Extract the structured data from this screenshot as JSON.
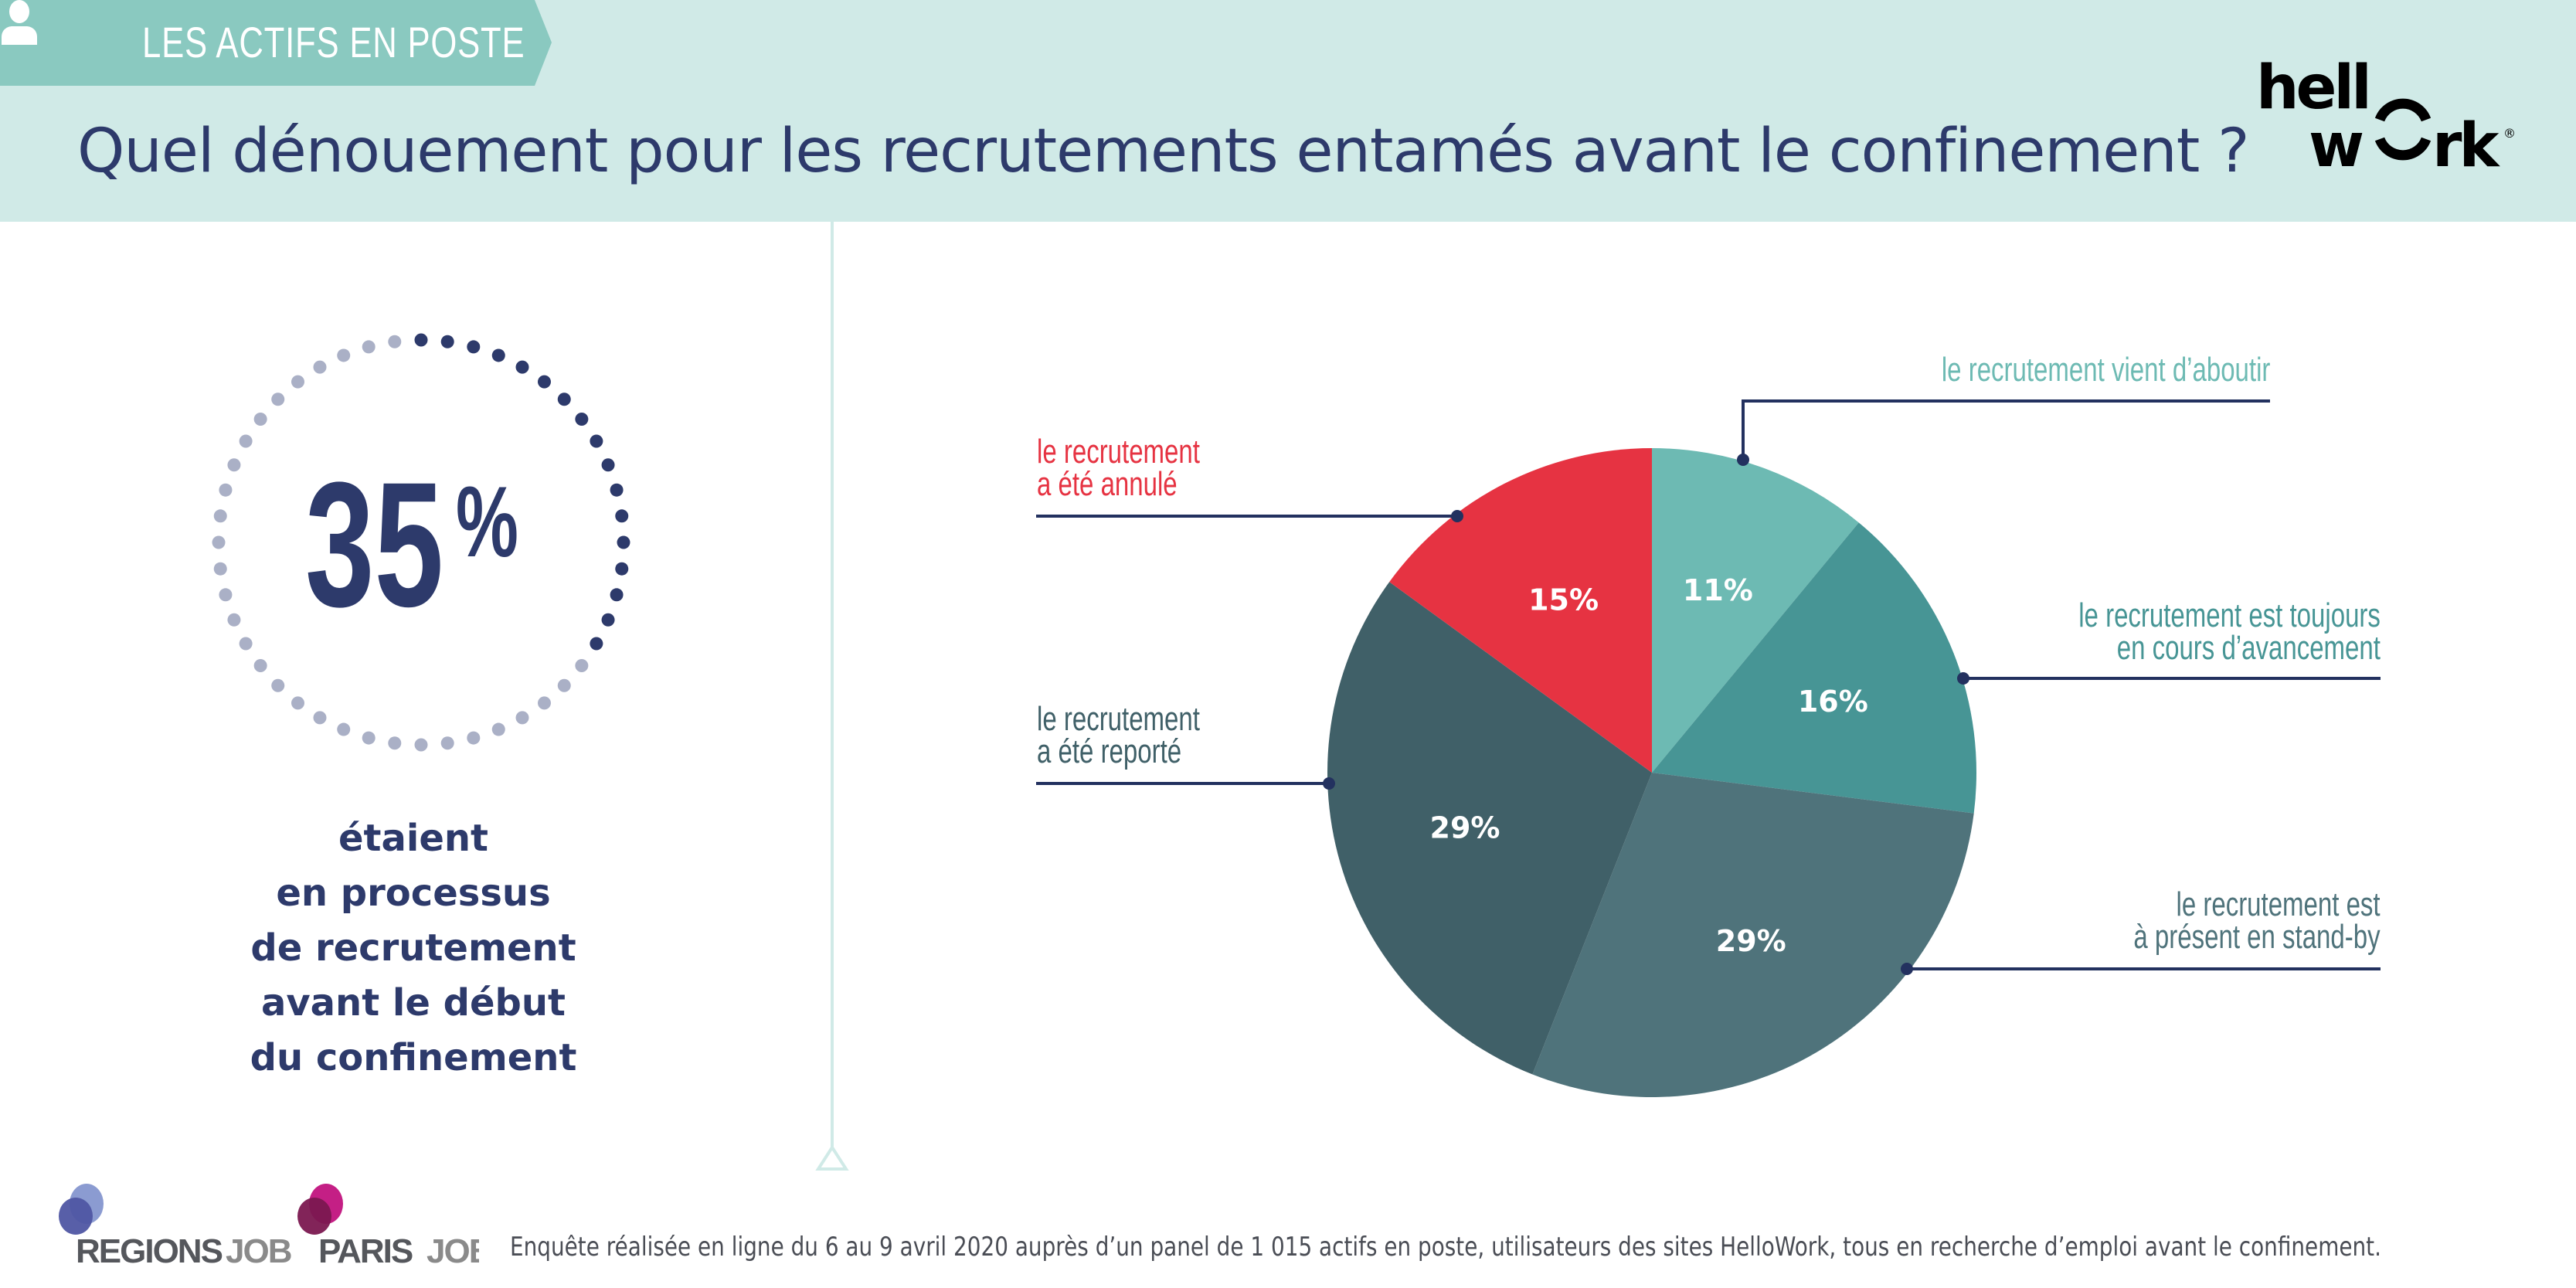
{
  "header": {
    "category": "LES ACTIFS EN POSTE",
    "category_icon": "user-icon",
    "title": "Quel dénouement pour les recrutements entamés avant le confinement ?",
    "brand_logo": "hellowork"
  },
  "highlight": {
    "value": "35",
    "unit": "%",
    "fraction_filled": 0.35,
    "caption_lines": [
      "étaient",
      "en processus",
      "de recrutement",
      "avant le début",
      "du confinement"
    ]
  },
  "colors": {
    "header_bg": "#d0eae7",
    "banner": "#8ac9c0",
    "navy": "#2d3a6b",
    "dot_light": "#aab0c6",
    "leader": "#23315f"
  },
  "chart_data": {
    "type": "pie",
    "title": "Quel dénouement pour les recrutements entamés avant le confinement ?",
    "start": "12 o'clock, clockwise",
    "slices": [
      {
        "label": "le recrutement vient d’aboutir",
        "label_lines": [
          "le recrutement vient d’aboutir"
        ],
        "value": 11,
        "display": "11%",
        "color": "#6dbab3"
      },
      {
        "label": "le recrutement est toujours en cours d’avancement",
        "label_lines": [
          "le recrutement est toujours",
          "en cours d’avancement"
        ],
        "value": 16,
        "display": "16%",
        "color": "#479595"
      },
      {
        "label": "le recrutement est à présent en stand-by",
        "label_lines": [
          "le recrutement est",
          "à présent en stand-by"
        ],
        "value": 29,
        "display": "29%",
        "color": "#4f737b"
      },
      {
        "label": "le recrutement a été reporté",
        "label_lines": [
          "le recrutement",
          "a été reporté"
        ],
        "value": 29,
        "display": "29%",
        "color": "#406068"
      },
      {
        "label": "le recrutement a été annulé",
        "label_lines": [
          "le recrutement",
          "a été annulé"
        ],
        "value": 15,
        "display": "15%",
        "color": "#e63342"
      }
    ]
  },
  "footer": {
    "logos": [
      {
        "name": "REGIONSJOB",
        "part1": "REGIONS",
        "part2": "JOB"
      },
      {
        "name": "PARISJOB",
        "part1": "PARIS",
        "part2": "JOB"
      }
    ],
    "note": "Enquête réalisée en ligne du 6 au 9 avril 2020 auprès d’un panel de 1 015 actifs en poste, utilisateurs des sites HelloWork, tous en recherche d’emploi avant le confinement."
  }
}
